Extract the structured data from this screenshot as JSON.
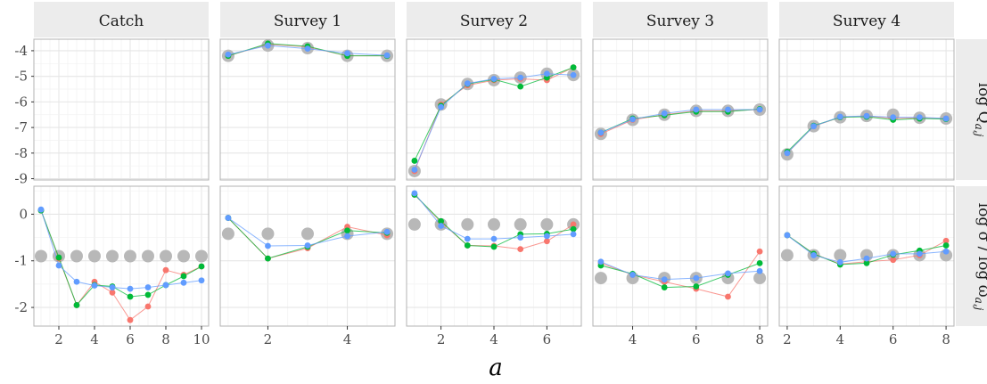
{
  "colors": {
    "panel_bg": "#ffffff",
    "strip_bg": "#ececec",
    "grid_major": "#e6e6e6",
    "grid_minor": "#f2f2f2",
    "border": "#b3b3b3",
    "grey": "#b8b8b8",
    "red": "#f8766d",
    "green": "#00ba38",
    "blue": "#619cff"
  },
  "chart_data": {
    "type": "scatter",
    "xlabel": "a",
    "row_labels": [
      "log Q",
      "log σ / log ω"
    ],
    "facets": [
      {
        "name": "Catch",
        "xlim": [
          0.6,
          10.4
        ],
        "xticks": [
          2,
          4,
          6,
          8,
          10
        ],
        "top": {
          "grey": [],
          "red": [],
          "green": [],
          "blue": []
        },
        "bottom": {
          "grey": [
            [
              1,
              -0.9
            ],
            [
              2,
              -0.9
            ],
            [
              3,
              -0.9
            ],
            [
              4,
              -0.9
            ],
            [
              5,
              -0.9
            ],
            [
              6,
              -0.9
            ],
            [
              7,
              -0.9
            ],
            [
              8,
              -0.9
            ],
            [
              9,
              -0.9
            ],
            [
              10,
              -0.9
            ]
          ],
          "red": [
            [
              1,
              0.08
            ],
            [
              2,
              -0.95
            ],
            [
              3,
              -1.95
            ],
            [
              4,
              -1.45
            ],
            [
              5,
              -1.68
            ],
            [
              6,
              -2.27
            ],
            [
              7,
              -1.98
            ],
            [
              8,
              -1.2
            ],
            [
              9,
              -1.3
            ],
            [
              10,
              -1.12
            ]
          ],
          "green": [
            [
              1,
              0.08
            ],
            [
              2,
              -0.93
            ],
            [
              3,
              -1.95
            ],
            [
              4,
              -1.52
            ],
            [
              5,
              -1.55
            ],
            [
              6,
              -1.77
            ],
            [
              7,
              -1.73
            ],
            [
              8,
              -1.52
            ],
            [
              9,
              -1.33
            ],
            [
              10,
              -1.12
            ]
          ],
          "blue": [
            [
              1,
              0.1
            ],
            [
              2,
              -1.1
            ],
            [
              3,
              -1.45
            ],
            [
              4,
              -1.53
            ],
            [
              5,
              -1.57
            ],
            [
              6,
              -1.6
            ],
            [
              7,
              -1.57
            ],
            [
              8,
              -1.52
            ],
            [
              9,
              -1.47
            ],
            [
              10,
              -1.42
            ]
          ]
        }
      },
      {
        "name": "Survey 1",
        "xlim": [
          0.8,
          5.2
        ],
        "xticks": [
          2,
          4
        ],
        "top": {
          "grey": [
            [
              1,
              -4.2
            ],
            [
              2,
              -3.8
            ],
            [
              3,
              -3.9
            ],
            [
              4,
              -4.2
            ],
            [
              5,
              -4.2
            ]
          ],
          "red": [
            [
              1,
              -4.2
            ],
            [
              2,
              -3.75
            ],
            [
              3,
              -3.85
            ],
            [
              4,
              -4.2
            ],
            [
              5,
              -4.2
            ]
          ],
          "green": [
            [
              1,
              -4.2
            ],
            [
              2,
              -3.72
            ],
            [
              3,
              -3.83
            ],
            [
              4,
              -4.2
            ],
            [
              5,
              -4.2
            ]
          ],
          "blue": [
            [
              1,
              -4.15
            ],
            [
              2,
              -3.8
            ],
            [
              3,
              -3.92
            ],
            [
              4,
              -4.1
            ],
            [
              5,
              -4.18
            ]
          ]
        },
        "bottom": {
          "grey": [
            [
              1,
              -0.42
            ],
            [
              2,
              -0.42
            ],
            [
              3,
              -0.42
            ],
            [
              4,
              -0.42
            ],
            [
              5,
              -0.42
            ]
          ],
          "red": [
            [
              1,
              -0.08
            ],
            [
              2,
              -0.95
            ],
            [
              3,
              -0.73
            ],
            [
              4,
              -0.27
            ],
            [
              5,
              -0.45
            ]
          ],
          "green": [
            [
              1,
              -0.08
            ],
            [
              2,
              -0.95
            ],
            [
              3,
              -0.7
            ],
            [
              4,
              -0.35
            ],
            [
              5,
              -0.4
            ]
          ],
          "blue": [
            [
              1,
              -0.08
            ],
            [
              2,
              -0.68
            ],
            [
              3,
              -0.67
            ],
            [
              4,
              -0.47
            ],
            [
              5,
              -0.38
            ]
          ]
        }
      },
      {
        "name": "Survey 2",
        "xlim": [
          0.7,
          7.3
        ],
        "xticks": [
          2,
          4,
          6
        ],
        "top": {
          "grey": [
            [
              1,
              -8.7
            ],
            [
              2,
              -6.1
            ],
            [
              3,
              -5.3
            ],
            [
              4,
              -5.15
            ],
            [
              5,
              -5.05
            ],
            [
              6,
              -4.9
            ],
            [
              7,
              -4.95
            ]
          ],
          "red": [
            [
              1,
              -8.7
            ],
            [
              2,
              -6.1
            ],
            [
              3,
              -5.35
            ],
            [
              4,
              -5.15
            ],
            [
              5,
              -5.1
            ],
            [
              6,
              -5.15
            ],
            [
              7,
              -4.65
            ]
          ],
          "green": [
            [
              1,
              -8.3
            ],
            [
              2,
              -6.15
            ],
            [
              3,
              -5.3
            ],
            [
              4,
              -5.12
            ],
            [
              5,
              -5.4
            ],
            [
              6,
              -5.05
            ],
            [
              7,
              -4.65
            ]
          ],
          "blue": [
            [
              1,
              -8.65
            ],
            [
              2,
              -6.2
            ],
            [
              3,
              -5.28
            ],
            [
              4,
              -5.1
            ],
            [
              5,
              -5.05
            ],
            [
              6,
              -4.9
            ],
            [
              7,
              -4.95
            ]
          ]
        },
        "bottom": {
          "grey": [
            [
              1,
              -0.22
            ],
            [
              2,
              -0.22
            ],
            [
              3,
              -0.22
            ],
            [
              4,
              -0.22
            ],
            [
              5,
              -0.22
            ],
            [
              6,
              -0.22
            ],
            [
              7,
              -0.22
            ]
          ],
          "red": [
            [
              1,
              0.42
            ],
            [
              2,
              -0.17
            ],
            [
              3,
              -0.67
            ],
            [
              4,
              -0.68
            ],
            [
              5,
              -0.75
            ],
            [
              6,
              -0.58
            ],
            [
              7,
              -0.22
            ]
          ],
          "green": [
            [
              1,
              0.42
            ],
            [
              2,
              -0.15
            ],
            [
              3,
              -0.67
            ],
            [
              4,
              -0.7
            ],
            [
              5,
              -0.43
            ],
            [
              6,
              -0.42
            ],
            [
              7,
              -0.32
            ]
          ],
          "blue": [
            [
              1,
              0.45
            ],
            [
              2,
              -0.25
            ],
            [
              3,
              -0.53
            ],
            [
              4,
              -0.53
            ],
            [
              5,
              -0.5
            ],
            [
              6,
              -0.47
            ],
            [
              7,
              -0.43
            ]
          ]
        }
      },
      {
        "name": "Survey 3",
        "xlim": [
          2.75,
          8.25
        ],
        "xticks": [
          4,
          6,
          8
        ],
        "top": {
          "grey": [
            [
              3,
              -7.25
            ],
            [
              4,
              -6.7
            ],
            [
              5,
              -6.5
            ],
            [
              6,
              -6.35
            ],
            [
              7,
              -6.35
            ],
            [
              8,
              -6.3
            ]
          ],
          "red": [
            [
              3,
              -7.25
            ],
            [
              4,
              -6.7
            ],
            [
              5,
              -6.5
            ],
            [
              6,
              -6.35
            ],
            [
              7,
              -6.35
            ],
            [
              8,
              -6.3
            ]
          ],
          "green": [
            [
              3,
              -7.2
            ],
            [
              4,
              -6.65
            ],
            [
              5,
              -6.52
            ],
            [
              6,
              -6.38
            ],
            [
              7,
              -6.38
            ],
            [
              8,
              -6.28
            ]
          ],
          "blue": [
            [
              3,
              -7.2
            ],
            [
              4,
              -6.68
            ],
            [
              5,
              -6.45
            ],
            [
              6,
              -6.3
            ],
            [
              7,
              -6.3
            ],
            [
              8,
              -6.3
            ]
          ]
        },
        "bottom": {
          "grey": [
            [
              3,
              -1.37
            ],
            [
              4,
              -1.37
            ],
            [
              5,
              -1.37
            ],
            [
              6,
              -1.37
            ],
            [
              7,
              -1.37
            ],
            [
              8,
              -1.37
            ]
          ],
          "red": [
            [
              3,
              -1.05
            ],
            [
              4,
              -1.3
            ],
            [
              5,
              -1.45
            ],
            [
              6,
              -1.6
            ],
            [
              7,
              -1.77
            ],
            [
              8,
              -0.8
            ]
          ],
          "green": [
            [
              3,
              -1.1
            ],
            [
              4,
              -1.28
            ],
            [
              5,
              -1.57
            ],
            [
              6,
              -1.55
            ],
            [
              7,
              -1.3
            ],
            [
              8,
              -1.05
            ]
          ],
          "blue": [
            [
              3,
              -1.02
            ],
            [
              4,
              -1.3
            ],
            [
              5,
              -1.4
            ],
            [
              6,
              -1.37
            ],
            [
              7,
              -1.27
            ],
            [
              8,
              -1.22
            ]
          ]
        }
      },
      {
        "name": "Survey 4",
        "xlim": [
          1.7,
          8.3
        ],
        "xticks": [
          2,
          4,
          6,
          8
        ],
        "top": {
          "grey": [
            [
              2,
              -8.05
            ],
            [
              3,
              -6.95
            ],
            [
              4,
              -6.6
            ],
            [
              5,
              -6.55
            ],
            [
              6,
              -6.5
            ],
            [
              7,
              -6.62
            ],
            [
              8,
              -6.65
            ]
          ],
          "red": [
            [
              2,
              -8.0
            ],
            [
              3,
              -6.95
            ],
            [
              4,
              -6.6
            ],
            [
              5,
              -6.55
            ],
            [
              6,
              -6.65
            ],
            [
              7,
              -6.62
            ],
            [
              8,
              -6.65
            ]
          ],
          "green": [
            [
              2,
              -7.95
            ],
            [
              3,
              -6.93
            ],
            [
              4,
              -6.6
            ],
            [
              5,
              -6.58
            ],
            [
              6,
              -6.7
            ],
            [
              7,
              -6.65
            ],
            [
              8,
              -6.67
            ]
          ],
          "blue": [
            [
              2,
              -8.0
            ],
            [
              3,
              -6.95
            ],
            [
              4,
              -6.58
            ],
            [
              5,
              -6.55
            ],
            [
              6,
              -6.6
            ],
            [
              7,
              -6.6
            ],
            [
              8,
              -6.65
            ]
          ]
        },
        "bottom": {
          "grey": [
            [
              2,
              -0.88
            ],
            [
              3,
              -0.88
            ],
            [
              4,
              -0.88
            ],
            [
              5,
              -0.88
            ],
            [
              6,
              -0.88
            ],
            [
              7,
              -0.88
            ],
            [
              8,
              -0.88
            ]
          ],
          "red": [
            [
              2,
              -0.45
            ],
            [
              3,
              -0.85
            ],
            [
              4,
              -1.07
            ],
            [
              5,
              -1.02
            ],
            [
              6,
              -0.98
            ],
            [
              7,
              -0.88
            ],
            [
              8,
              -0.57
            ]
          ],
          "green": [
            [
              2,
              -0.45
            ],
            [
              3,
              -0.85
            ],
            [
              4,
              -1.08
            ],
            [
              5,
              -1.05
            ],
            [
              6,
              -0.87
            ],
            [
              7,
              -0.78
            ],
            [
              8,
              -0.67
            ]
          ],
          "blue": [
            [
              2,
              -0.45
            ],
            [
              3,
              -0.88
            ],
            [
              4,
              -1.03
            ],
            [
              5,
              -0.95
            ],
            [
              6,
              -0.85
            ],
            [
              7,
              -0.85
            ],
            [
              8,
              -0.8
            ]
          ]
        }
      }
    ],
    "rows": [
      {
        "ylim": [
          -9.05,
          -3.55
        ],
        "yticks": [
          -9,
          -8,
          -7,
          -6,
          -5,
          -4
        ],
        "ytick_labels": [
          "-9",
          "-8",
          "-7",
          "-6",
          "-5",
          "-4"
        ]
      },
      {
        "ylim": [
          -2.4,
          0.6
        ],
        "yticks": [
          -2,
          -1,
          0
        ],
        "ytick_labels": [
          "-2",
          "-1",
          "0"
        ]
      }
    ],
    "grid": true
  }
}
